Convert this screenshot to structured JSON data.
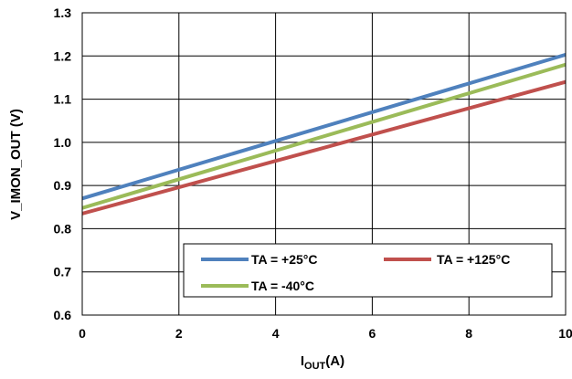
{
  "chart_data": {
    "type": "line",
    "x": [
      0,
      10
    ],
    "xlim": [
      0,
      10
    ],
    "ylim": [
      0.6,
      1.3
    ],
    "xticks": [
      0,
      2,
      4,
      6,
      8,
      10
    ],
    "yticks": [
      0.6,
      0.7,
      0.8,
      0.9,
      1.0,
      1.1,
      1.2,
      1.3
    ],
    "xtick_labels": [
      "0",
      "2",
      "4",
      "6",
      "8",
      "10"
    ],
    "ytick_labels": [
      "0.6",
      "0.7",
      "0.8",
      "0.9",
      "1.0",
      "1.1",
      "1.2",
      "1.3"
    ],
    "xlabel_main": "I",
    "xlabel_sub": "OUT",
    "xlabel_unit": "(A)",
    "ylabel": "V_IMON_OUT (V)",
    "grid": true,
    "legend_position": "bottom-right",
    "series": [
      {
        "name": "TA = +25°C",
        "color": "#4f81bd",
        "values": [
          0.87,
          1.203
        ]
      },
      {
        "name": "TA = +125°C",
        "color": "#c0504d",
        "values": [
          0.835,
          1.14
        ]
      },
      {
        "name": "TA = -40°C",
        "color": "#9bbb59",
        "values": [
          0.848,
          1.18
        ]
      }
    ]
  }
}
